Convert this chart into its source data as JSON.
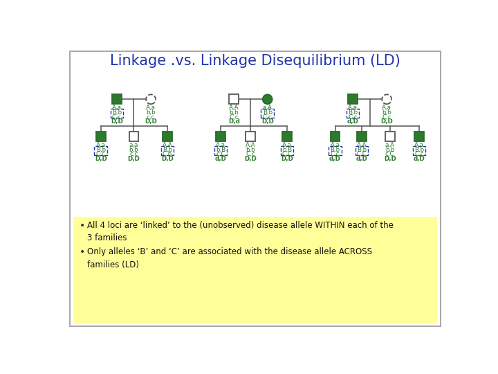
{
  "title": "Linkage .vs. Linkage Disequilibrium (LD)",
  "title_color": "#2233aa",
  "title_fontsize": 15,
  "green_fill": "#2d7a2d",
  "white_fill": "#ffffff",
  "green_text": "#2d7a2d",
  "dashed_box_color": "#2233aa",
  "bullet_bg": "#ffff99",
  "bullet1": "All 4 loci are ‘linked’ to the (unobserved) disease allele WITHIN each of the\n3 families",
  "bullet2": "Only alleles ‘B’ and ‘C’ are associated with the disease allele ACROSS\nfamilies (LD)",
  "line_color": "#555555"
}
